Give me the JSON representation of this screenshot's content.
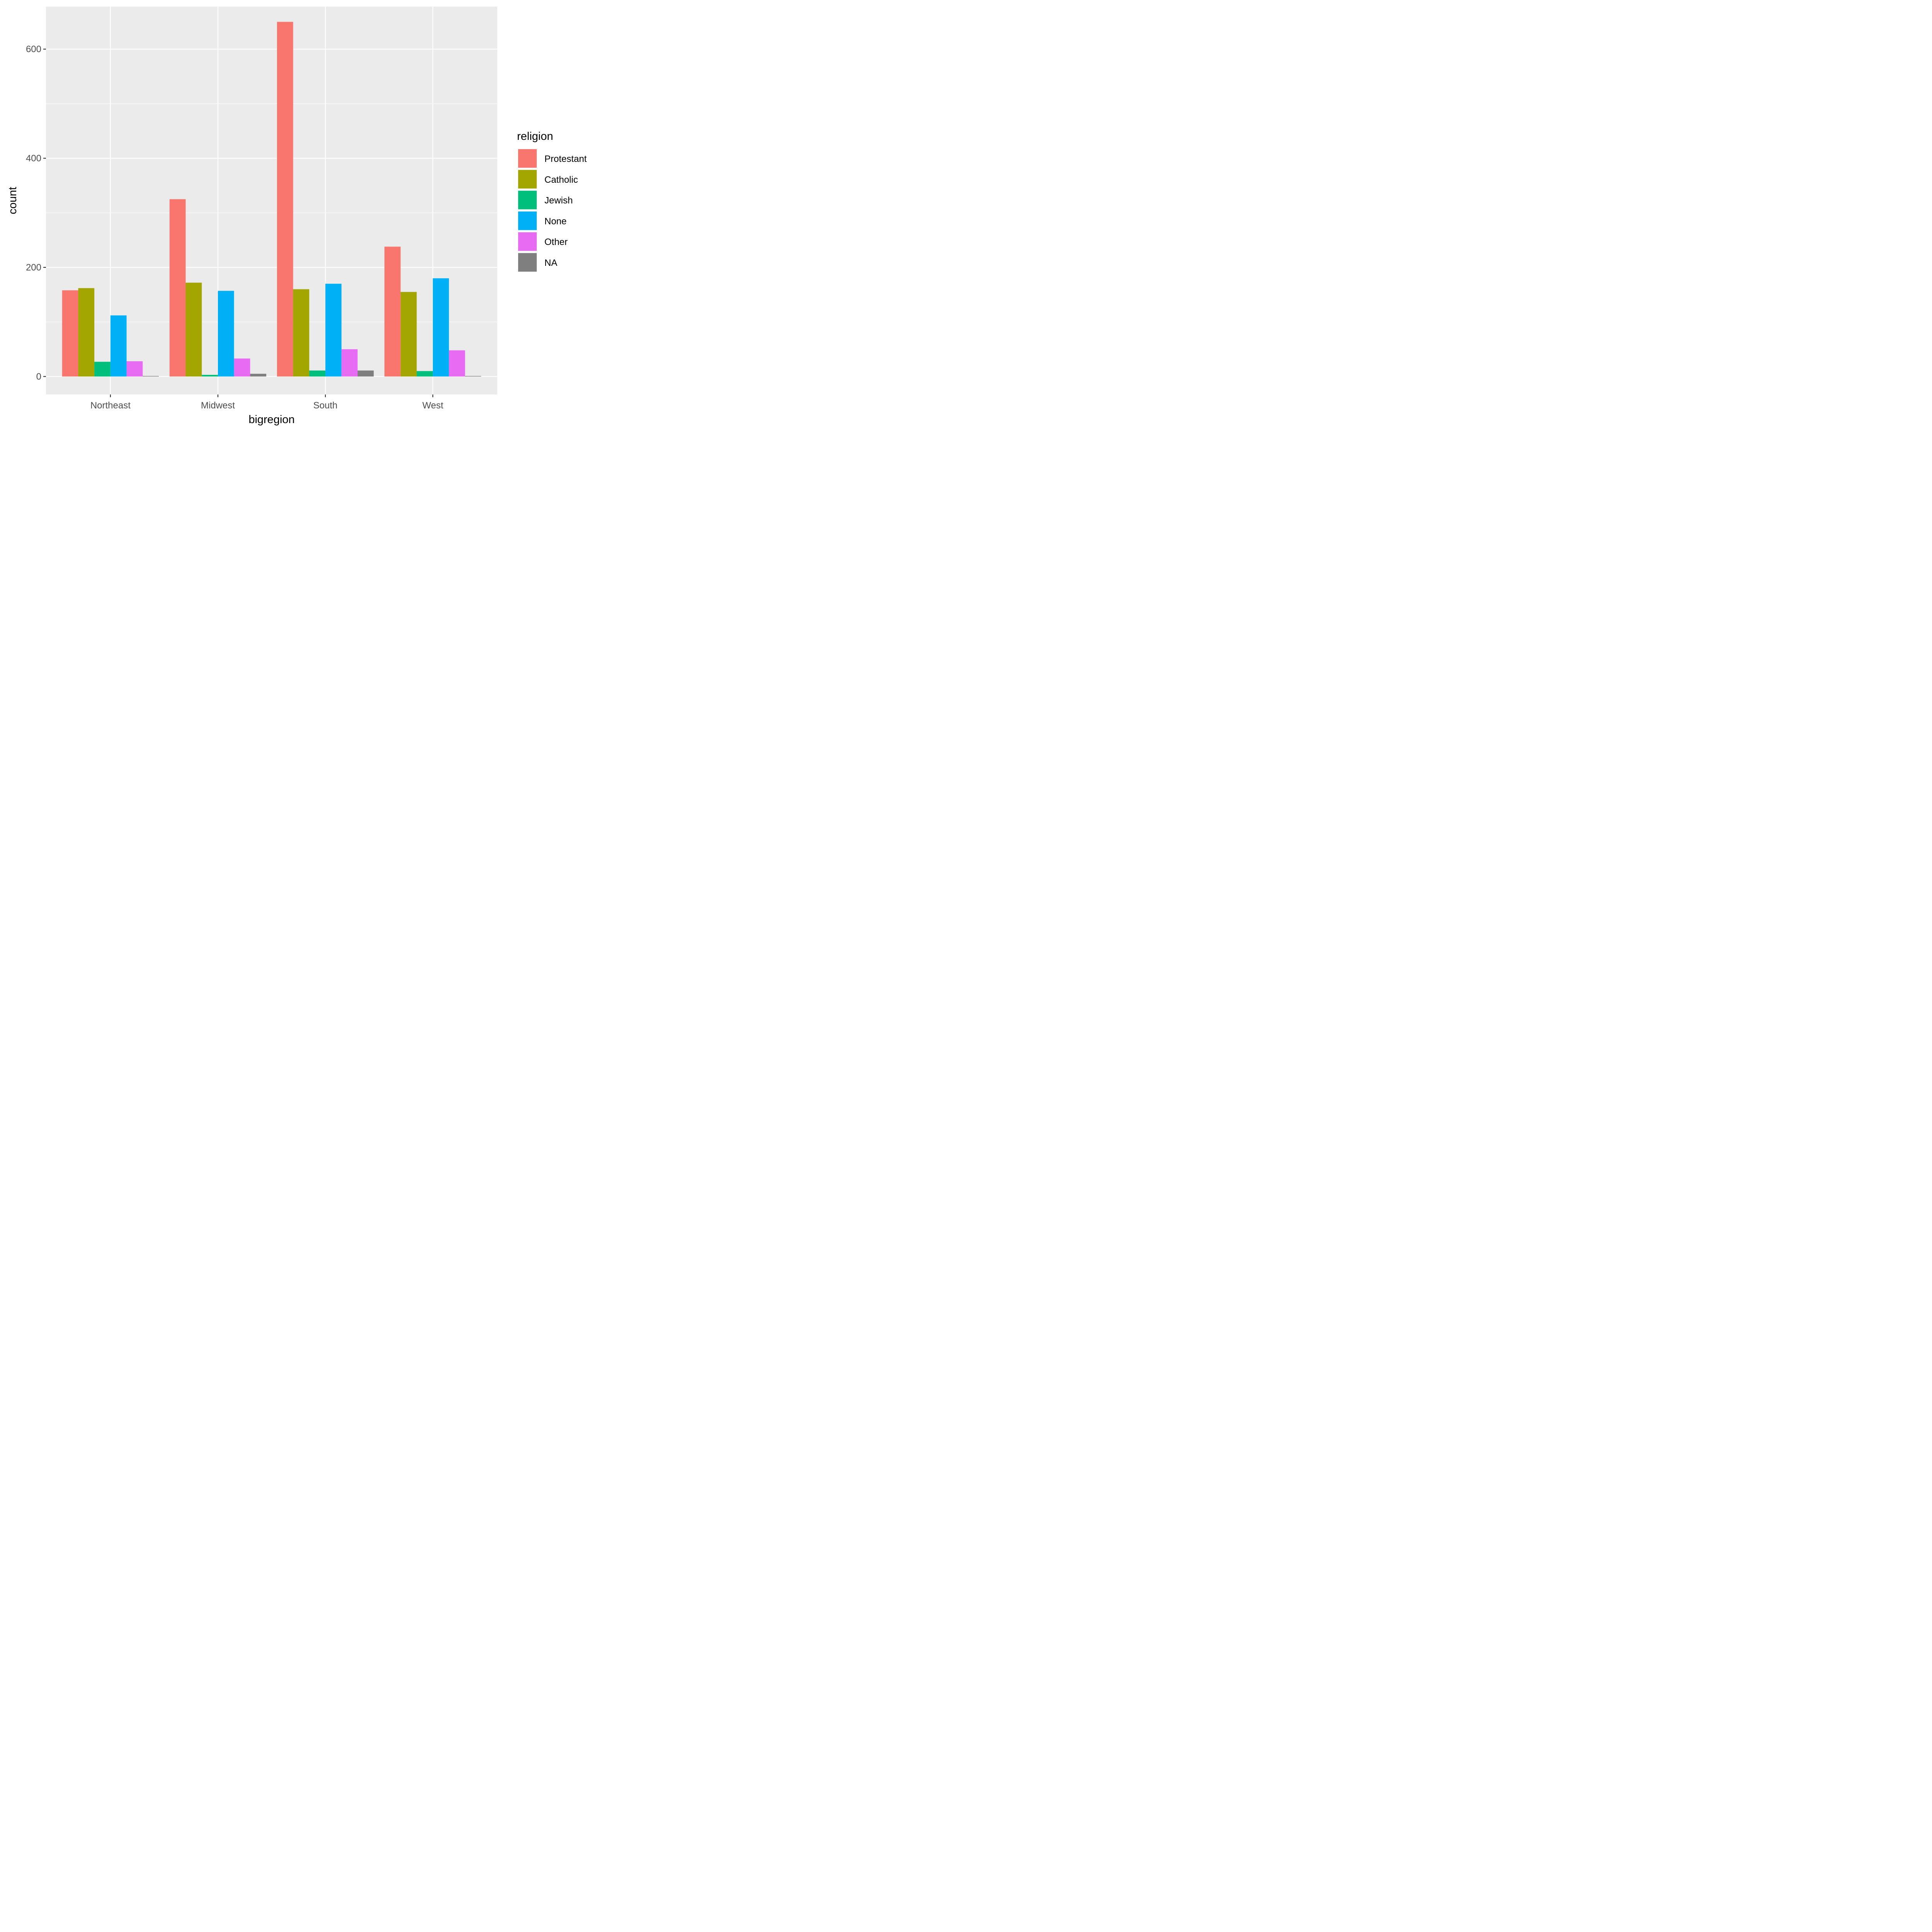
{
  "chart_data": {
    "type": "bar",
    "xlabel": "bigregion",
    "ylabel": "count",
    "categories": [
      "Northeast",
      "Midwest",
      "South",
      "West"
    ],
    "ylim": [
      -33,
      678
    ],
    "yticks": [
      0,
      200,
      400,
      600
    ],
    "grid": true,
    "legend": {
      "title": "religion",
      "position": "right"
    },
    "series": [
      {
        "name": "Protestant",
        "color": "#F8766D",
        "values": [
          158,
          325,
          650,
          238
        ]
      },
      {
        "name": "Catholic",
        "color": "#A3A500",
        "values": [
          162,
          172,
          160,
          155
        ]
      },
      {
        "name": "Jewish",
        "color": "#00BF7D",
        "values": [
          27,
          3,
          11,
          10
        ]
      },
      {
        "name": "None",
        "color": "#00B0F6",
        "values": [
          112,
          157,
          170,
          180
        ]
      },
      {
        "name": "Other",
        "color": "#E76BF3",
        "values": [
          28,
          33,
          50,
          48
        ]
      },
      {
        "name": "NA",
        "color": "#7F7F7F",
        "values": [
          1,
          5,
          11,
          1
        ]
      }
    ]
  }
}
